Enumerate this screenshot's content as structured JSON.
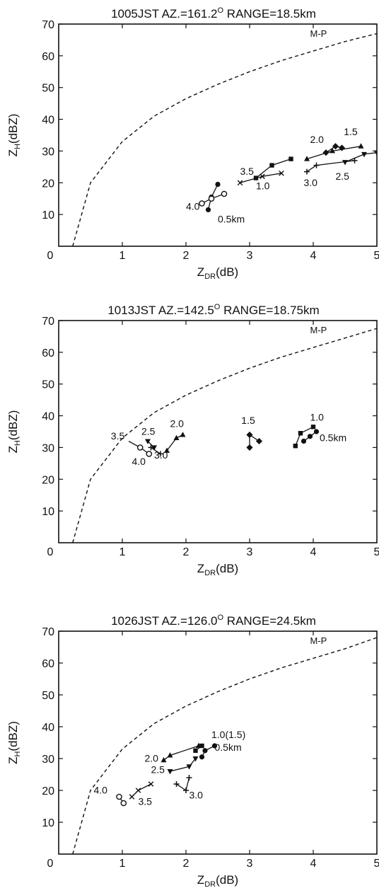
{
  "chart_data": [
    {
      "type": "scatter",
      "title": "1005JST AZ.=161.2° RANGE=18.5km",
      "title_parts": {
        "pre": "1005JST AZ.=161.2",
        "sup": "O",
        "post": " RANGE=18.5km"
      },
      "xlabel": {
        "main": "Z",
        "sub": "DR",
        "unit": "(dB)"
      },
      "ylabel": {
        "main": "Z",
        "sub": "H",
        "unit": "(dBZ)"
      },
      "xlim": [
        0,
        5
      ],
      "ylim": [
        0,
        70
      ],
      "xticks": [
        "0",
        "1",
        "2",
        "3",
        "4",
        "5"
      ],
      "yticks": [
        "10",
        "20",
        "30",
        "40",
        "50",
        "60",
        "70"
      ],
      "grid": false,
      "reference_curve": {
        "name": "M-P",
        "style": "dashed",
        "points": [
          [
            0.22,
            0
          ],
          [
            0.5,
            20
          ],
          [
            1,
            33
          ],
          [
            1.5,
            41
          ],
          [
            2,
            46.5
          ],
          [
            2.5,
            51
          ],
          [
            3,
            55
          ],
          [
            3.5,
            58.5
          ],
          [
            4,
            61.5
          ],
          [
            4.5,
            64.5
          ],
          [
            5,
            67
          ]
        ]
      },
      "series": [
        {
          "label": "0.5km",
          "marker": "circle-filled",
          "points": [
            [
              2.35,
              11.5
            ],
            [
              2.4,
              15.5
            ],
            [
              2.5,
              19.5
            ]
          ]
        },
        {
          "label": "1.0",
          "marker": "x",
          "points": [
            [
              2.85,
              20
            ],
            [
              3.2,
              22
            ],
            [
              3.5,
              23
            ]
          ]
        },
        {
          "label": "1.5",
          "marker": "diamond",
          "points": [
            [
              4.2,
              29.5
            ],
            [
              4.35,
              31.5
            ],
            [
              4.45,
              31
            ]
          ]
        },
        {
          "label": "2.0",
          "marker": "triangle-up",
          "points": [
            [
              3.9,
              27.5
            ],
            [
              4.3,
              30
            ],
            [
              4.75,
              31.5
            ]
          ]
        },
        {
          "label": "2.5",
          "marker": "triangle-down",
          "points": [
            [
              4.5,
              26.5
            ],
            [
              4.8,
              29
            ],
            [
              5,
              29.5
            ]
          ]
        },
        {
          "label": "3.0",
          "marker": "plus",
          "points": [
            [
              3.9,
              23.5
            ],
            [
              4.05,
              25.5
            ],
            [
              4.65,
              27
            ]
          ]
        },
        {
          "label": "3.5",
          "marker": "square",
          "points": [
            [
              3.1,
              21.5
            ],
            [
              3.35,
              25.5
            ],
            [
              3.65,
              27.5
            ]
          ]
        },
        {
          "label": "4.0",
          "marker": "circle-open",
          "points": [
            [
              2.25,
              13.5
            ],
            [
              2.4,
              15
            ],
            [
              2.6,
              16.5
            ]
          ]
        }
      ],
      "annotations": [
        {
          "text": "M-P",
          "x": 3.95,
          "y": 66
        },
        {
          "text": "2.0",
          "x": 3.95,
          "y": 32.5
        },
        {
          "text": "1.5",
          "x": 4.48,
          "y": 35
        },
        {
          "text": "3.5",
          "x": 2.85,
          "y": 22.5
        },
        {
          "text": "1.0",
          "x": 3.1,
          "y": 18
        },
        {
          "text": "3.0",
          "x": 3.85,
          "y": 19
        },
        {
          "text": "2.5",
          "x": 4.35,
          "y": 21
        },
        {
          "text": "4.0",
          "x": 2.0,
          "y": 11.5
        },
        {
          "text": "0.5km",
          "x": 2.5,
          "y": 7.5
        }
      ]
    },
    {
      "type": "scatter",
      "title": "1013JST AZ.=142.5° RANGE=18.75km",
      "title_parts": {
        "pre": "1013JST AZ.=142.5",
        "sup": "O",
        "post": " RANGE=18.75km"
      },
      "xlabel": {
        "main": "Z",
        "sub": "DR",
        "unit": "(dB)"
      },
      "ylabel": {
        "main": "Z",
        "sub": "H",
        "unit": "(dBZ)"
      },
      "xlim": [
        0,
        5
      ],
      "ylim": [
        0,
        70
      ],
      "xticks": [
        "0",
        "1",
        "2",
        "3",
        "4",
        "5"
      ],
      "yticks": [
        "10",
        "20",
        "30",
        "40",
        "50",
        "60",
        "70"
      ],
      "grid": false,
      "reference_curve": {
        "name": "M-P",
        "style": "dashed",
        "points": [
          [
            0.22,
            0
          ],
          [
            0.5,
            20
          ],
          [
            1,
            33
          ],
          [
            1.5,
            41
          ],
          [
            2,
            46.5
          ],
          [
            2.5,
            51
          ],
          [
            3,
            55
          ],
          [
            3.5,
            58.5
          ],
          [
            4,
            61.5
          ],
          [
            4.5,
            64.5
          ],
          [
            5,
            67.5
          ]
        ]
      },
      "series": [
        {
          "label": "0.5km",
          "marker": "circle-filled",
          "points": [
            [
              3.85,
              32
            ],
            [
              3.95,
              33.5
            ],
            [
              4.05,
              35
            ]
          ]
        },
        {
          "label": "1.0",
          "marker": "square",
          "points": [
            [
              3.72,
              30.5
            ],
            [
              3.8,
              34.5
            ],
            [
              4.0,
              36.5
            ]
          ]
        },
        {
          "label": "1.5",
          "marker": "diamond",
          "points": [
            [
              3.0,
              30
            ],
            [
              3.0,
              34
            ],
            [
              3.15,
              32
            ]
          ]
        },
        {
          "label": "2.0",
          "marker": "triangle-up",
          "points": [
            [
              1.7,
              29
            ],
            [
              1.85,
              33
            ],
            [
              1.95,
              34
            ]
          ]
        },
        {
          "label": "2.5",
          "marker": "triangle-down",
          "points": [
            [
              1.4,
              32
            ],
            [
              1.5,
              30
            ]
          ]
        },
        {
          "label": "3.0",
          "marker": "plus",
          "points": [
            [
              1.45,
              30
            ],
            [
              1.6,
              28
            ]
          ]
        },
        {
          "label": "3.5",
          "marker": "line",
          "points": [
            [
              1.1,
              32
            ],
            [
              1.28,
              30
            ]
          ]
        },
        {
          "label": "4.0",
          "marker": "circle-open",
          "points": [
            [
              1.28,
              30
            ],
            [
              1.42,
              28
            ]
          ]
        }
      ],
      "annotations": [
        {
          "text": "M-P",
          "x": 3.95,
          "y": 66
        },
        {
          "text": "1.0",
          "x": 3.95,
          "y": 38.5
        },
        {
          "text": "0.5km",
          "x": 4.1,
          "y": 32
        },
        {
          "text": "1.5",
          "x": 2.87,
          "y": 37.5
        },
        {
          "text": "2.0",
          "x": 1.75,
          "y": 36.5
        },
        {
          "text": "2.5",
          "x": 1.3,
          "y": 34
        },
        {
          "text": "3.5",
          "x": 0.82,
          "y": 32.5
        },
        {
          "text": "3.0",
          "x": 1.5,
          "y": 26.5
        },
        {
          "text": "4.0",
          "x": 1.15,
          "y": 24.5
        }
      ]
    },
    {
      "type": "scatter",
      "title": "1026JST AZ.=126.0° RANGE=24.5km",
      "title_parts": {
        "pre": "1026JST AZ.=126.0",
        "sup": "O",
        "post": " RANGE=24.5km"
      },
      "xlabel": {
        "main": "Z",
        "sub": "DR",
        "unit": "(dB)"
      },
      "ylabel": {
        "main": "Z",
        "sub": "H",
        "unit": "(dBZ)"
      },
      "xlim": [
        0,
        5
      ],
      "ylim": [
        0,
        70
      ],
      "xticks": [
        "0",
        "1",
        "2",
        "3",
        "4",
        "5"
      ],
      "yticks": [
        "10",
        "20",
        "30",
        "40",
        "50",
        "60",
        "70"
      ],
      "grid": false,
      "reference_curve": {
        "name": "M-P",
        "style": "dashed",
        "points": [
          [
            0.22,
            0
          ],
          [
            0.5,
            20
          ],
          [
            1,
            33
          ],
          [
            1.5,
            41
          ],
          [
            2,
            46.5
          ],
          [
            2.5,
            51
          ],
          [
            3,
            55
          ],
          [
            3.5,
            58.5
          ],
          [
            4,
            61.5
          ],
          [
            4.5,
            64.5
          ],
          [
            5,
            68
          ]
        ]
      },
      "series": [
        {
          "label": "0.5km",
          "marker": "circle-filled",
          "points": [
            [
              2.25,
              30.5
            ],
            [
              2.3,
              32.5
            ],
            [
              2.45,
              34
            ]
          ]
        },
        {
          "label": "1.0(1.5)",
          "marker": "square",
          "points": [
            [
              2.15,
              32.5
            ],
            [
              2.25,
              34
            ]
          ]
        },
        {
          "label": "2.0",
          "marker": "triangle-up",
          "points": [
            [
              1.65,
              29.5
            ],
            [
              1.75,
              31
            ],
            [
              2.2,
              34
            ]
          ]
        },
        {
          "label": "2.5",
          "marker": "triangle-down",
          "points": [
            [
              1.75,
              26
            ],
            [
              2.05,
              27.5
            ],
            [
              2.15,
              30
            ]
          ]
        },
        {
          "label": "3.0",
          "marker": "plus",
          "points": [
            [
              1.85,
              22
            ],
            [
              2.0,
              20
            ],
            [
              2.05,
              24
            ]
          ]
        },
        {
          "label": "3.5",
          "marker": "x",
          "points": [
            [
              1.15,
              18
            ],
            [
              1.25,
              20
            ],
            [
              1.45,
              22
            ]
          ]
        },
        {
          "label": "4.0",
          "marker": "circle-open",
          "points": [
            [
              0.95,
              18
            ],
            [
              1.02,
              16
            ]
          ]
        }
      ],
      "annotations": [
        {
          "text": "M-P",
          "x": 3.95,
          "y": 66
        },
        {
          "text": "1.0(1.5)",
          "x": 2.4,
          "y": 36.5
        },
        {
          "text": "0.5km",
          "x": 2.45,
          "y": 32.5
        },
        {
          "text": "2.0",
          "x": 1.35,
          "y": 29
        },
        {
          "text": "2.5",
          "x": 1.45,
          "y": 25.5
        },
        {
          "text": "4.0",
          "x": 0.55,
          "y": 19
        },
        {
          "text": "3.5",
          "x": 1.25,
          "y": 15.5
        },
        {
          "text": "3.0",
          "x": 2.05,
          "y": 17.5
        }
      ]
    }
  ]
}
